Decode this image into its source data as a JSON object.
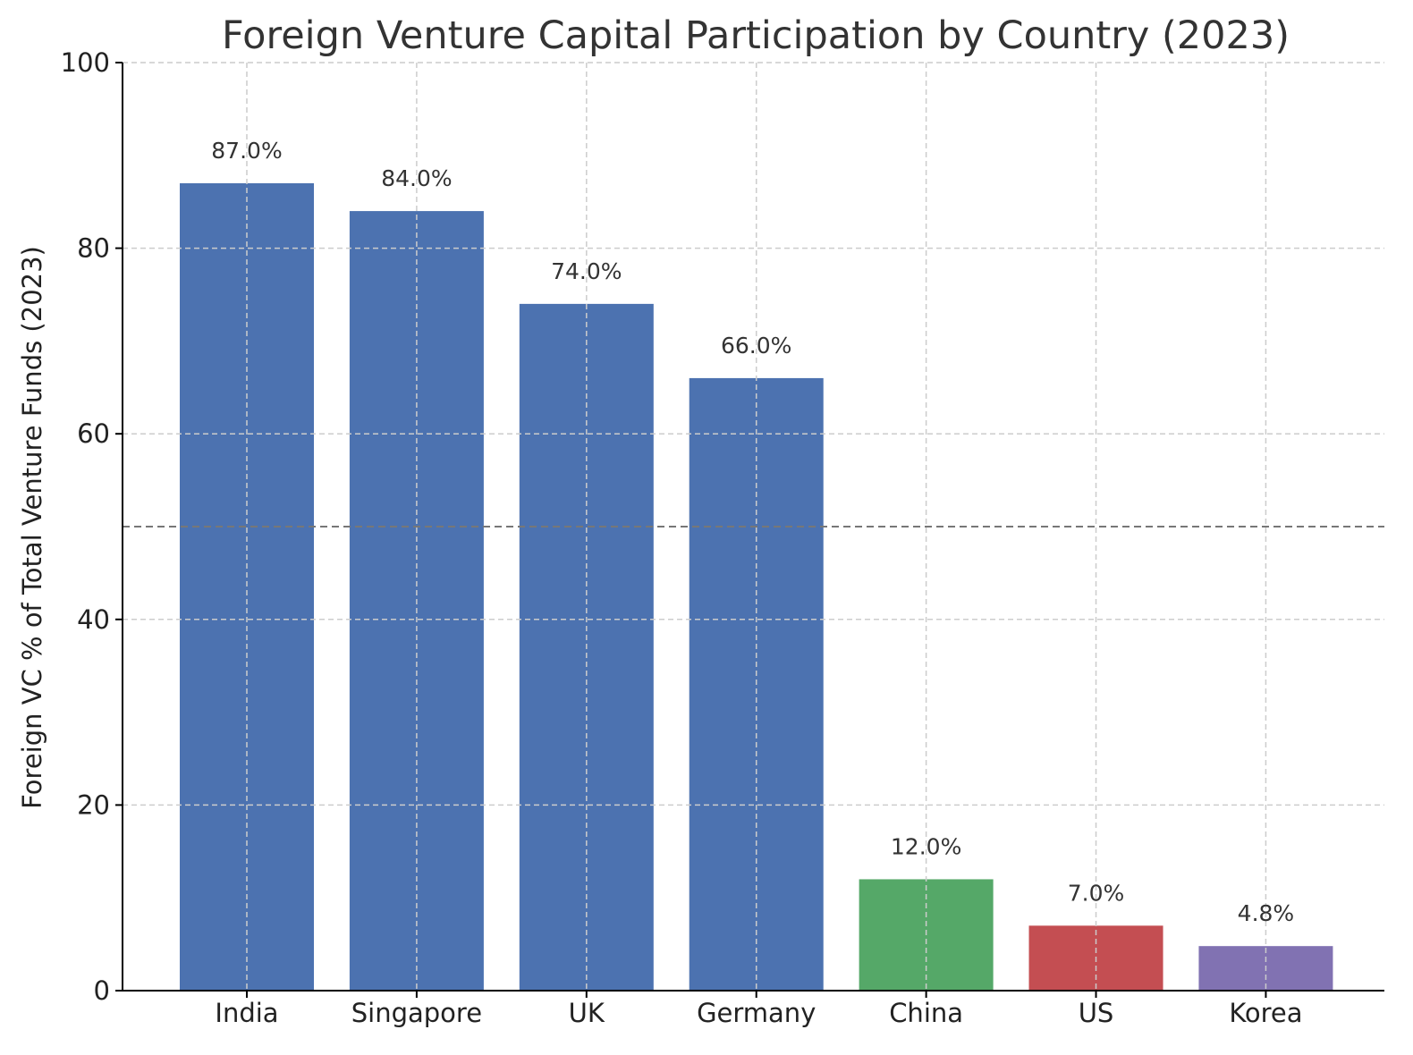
{
  "chart_data": {
    "type": "bar",
    "title": "Foreign Venture Capital Participation by Country (2023)",
    "xlabel": "",
    "ylabel": "Foreign VC % of Total Venture Funds (2023)",
    "categories": [
      "India",
      "Singapore",
      "UK",
      "Germany",
      "China",
      "US",
      "Korea"
    ],
    "values": [
      87.0,
      84.0,
      74.0,
      66.0,
      12.0,
      7.0,
      4.8
    ],
    "value_labels": [
      "87.0%",
      "84.0%",
      "74.0%",
      "66.0%",
      "12.0%",
      "7.0%",
      "4.8%"
    ],
    "bar_colors": [
      "#4c72b0",
      "#4c72b0",
      "#4c72b0",
      "#4c72b0",
      "#55a868",
      "#c44e52",
      "#8172b2"
    ],
    "ylim": [
      0,
      100
    ],
    "yticks": [
      0,
      20,
      40,
      60,
      80,
      100
    ],
    "reference_line": {
      "y": 50,
      "style": "dashed",
      "color": "#777777"
    },
    "grid": true
  }
}
